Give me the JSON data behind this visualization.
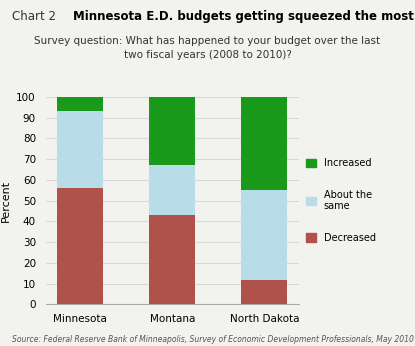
{
  "categories": [
    "Minnesota",
    "Montana",
    "North Dakota"
  ],
  "decreased": [
    56,
    43,
    12
  ],
  "about_same": [
    37,
    24,
    43
  ],
  "increased": [
    7,
    33,
    45
  ],
  "color_decreased": "#b0524a",
  "color_about_same": "#b8dde8",
  "color_increased": "#1a9a1a",
  "title_prefix": "Chart 2",
  "title_main": "Minnesota E.D. budgets getting squeezed the most",
  "subtitle": "Survey question: What has happened to your budget over the last\ntwo fiscal years (2008 to 2010)?",
  "ylabel": "Percent",
  "ylim": [
    0,
    100
  ],
  "yticks": [
    0,
    10,
    20,
    30,
    40,
    50,
    60,
    70,
    80,
    90,
    100
  ],
  "legend_labels": [
    "Increased",
    "About the\nsame",
    "Decreased"
  ],
  "source": "Source: Federal Reserve Bank of Minneapolis, Survey of Economic Development Professionals, May 2010",
  "bar_width": 0.5,
  "background_color": "#f2f2ee",
  "grid_color": "#d8d8d8"
}
